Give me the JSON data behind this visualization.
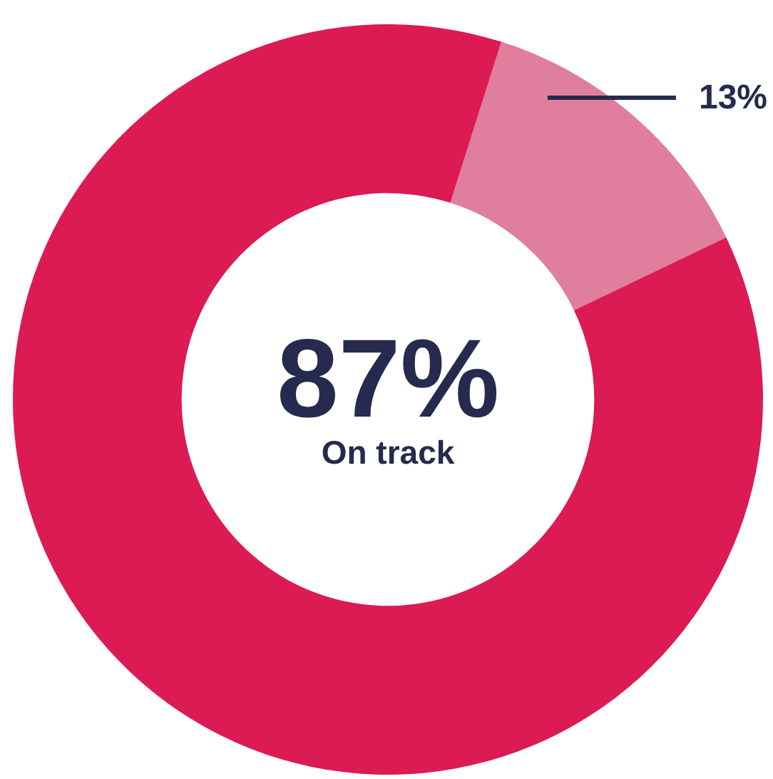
{
  "chart_data": {
    "type": "donut",
    "categories": [
      null,
      "On track"
    ],
    "values": [
      13,
      87
    ],
    "colors": [
      "#df7e9d",
      "#dc1a53"
    ],
    "value_labels": [
      "13%",
      "87%"
    ]
  }
}
